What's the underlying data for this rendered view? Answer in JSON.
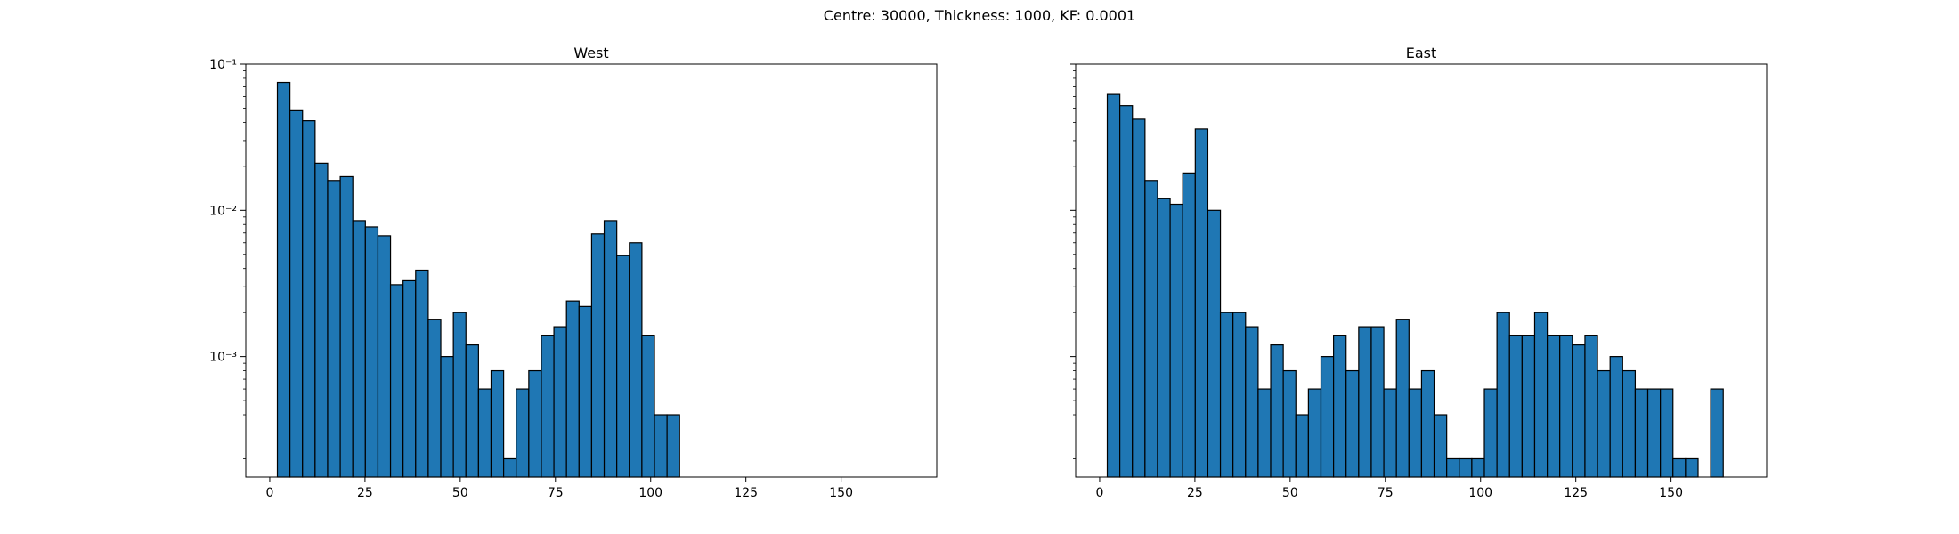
{
  "suptitle": "Centre: 30000, Thickness: 1000, KF: 0.0001",
  "colors": {
    "bar_fill": "#1f77b4",
    "bar_edge": "#000000",
    "axes": "#000000"
  },
  "chart_data": [
    {
      "type": "bar",
      "title": "West",
      "xlabel": "",
      "ylabel": "",
      "yscale": "log",
      "xlim": [
        -6.3,
        175.1
      ],
      "ylim": [
        0.00015,
        0.1
      ],
      "xticks": [
        0,
        25,
        50,
        75,
        100,
        125,
        150
      ],
      "yticks": [
        0.001,
        0.01,
        0.1
      ],
      "ytick_labels": [
        "10⁻³",
        "10⁻²",
        "10⁻¹"
      ],
      "bin_width": 3.3,
      "bin_start": 2,
      "grid": false,
      "values": [
        0.075,
        0.048,
        0.041,
        0.021,
        0.016,
        0.017,
        0.0085,
        0.0077,
        0.0067,
        0.0031,
        0.0033,
        0.0039,
        0.0018,
        0.001,
        0.002,
        0.0012,
        0.0006,
        0.0008,
        0.0002,
        0.0006,
        0.0008,
        0.0014,
        0.0016,
        0.0024,
        0.0022,
        0.0069,
        0.0085,
        0.0049,
        0.006,
        0.0014,
        0.0004,
        0.0004,
        0,
        0,
        0,
        0,
        0,
        0,
        0,
        0,
        0,
        0,
        0,
        0,
        0,
        0,
        0,
        0,
        0,
        0
      ]
    },
    {
      "type": "bar",
      "title": "East",
      "xlabel": "",
      "ylabel": "",
      "yscale": "log",
      "xlim": [
        -6.3,
        175.1
      ],
      "ylim": [
        0.00015,
        0.1
      ],
      "xticks": [
        0,
        25,
        50,
        75,
        100,
        125,
        150
      ],
      "yticks": [
        0.001,
        0.01,
        0.1
      ],
      "ytick_labels": [
        "",
        "",
        ""
      ],
      "bin_width": 3.3,
      "bin_start": 2,
      "grid": false,
      "values": [
        0.062,
        0.052,
        0.042,
        0.016,
        0.012,
        0.011,
        0.018,
        0.036,
        0.01,
        0.002,
        0.002,
        0.0016,
        0.0006,
        0.0012,
        0.0008,
        0.0004,
        0.0006,
        0.001,
        0.0014,
        0.0008,
        0.0016,
        0.0016,
        0.0006,
        0.0018,
        0.0006,
        0.0008,
        0.0004,
        0.0002,
        0.0002,
        0.0002,
        0.0006,
        0.002,
        0.0014,
        0.0014,
        0.002,
        0.0014,
        0.0014,
        0.0012,
        0.0014,
        0.0008,
        0.001,
        0.0008,
        0.0006,
        0.0006,
        0.0006,
        0.0002,
        0.0002,
        0,
        0.0006,
        0
      ]
    }
  ]
}
